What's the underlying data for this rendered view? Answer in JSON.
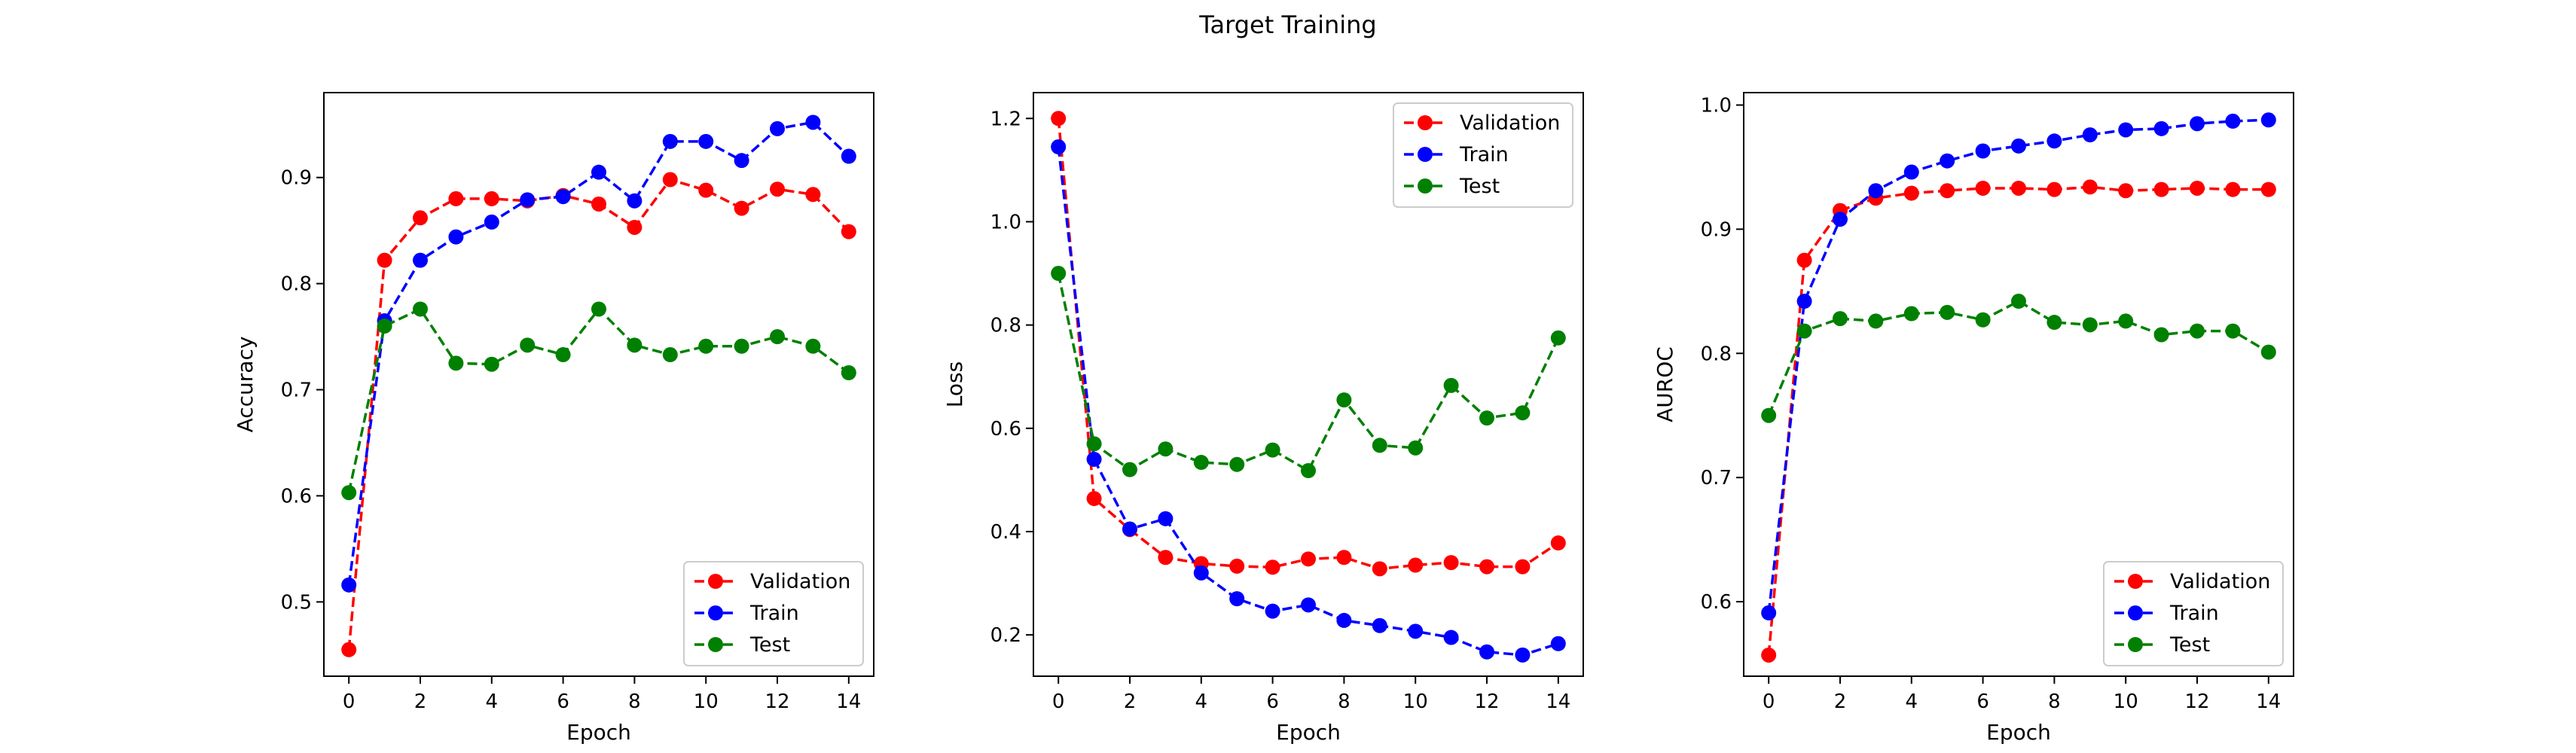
{
  "figure": {
    "suptitle": "Target Training"
  },
  "colors": {
    "Validation": "#ff0000",
    "Train": "#0000ff",
    "Test": "#008000"
  },
  "chart_data": [
    {
      "type": "line",
      "xlabel": "Epoch",
      "ylabel": "Accuracy",
      "x": [
        0,
        1,
        2,
        3,
        4,
        5,
        6,
        7,
        8,
        9,
        10,
        11,
        12,
        13,
        14
      ],
      "xlim": [
        -0.7,
        14.7
      ],
      "ylim": [
        0.43,
        0.98
      ],
      "xticks": [
        0,
        2,
        4,
        6,
        8,
        10,
        12,
        14
      ],
      "yticks": [
        0.5,
        0.6,
        0.7,
        0.8,
        0.9
      ],
      "ytick_labels": [
        "0.5",
        "0.6",
        "0.7",
        "0.8",
        "0.9"
      ],
      "legend_position": "bottom-right",
      "grid": false,
      "series": [
        {
          "name": "Validation",
          "values": [
            0.455,
            0.822,
            0.862,
            0.88,
            0.88,
            0.878,
            0.883,
            0.875,
            0.853,
            0.898,
            0.888,
            0.871,
            0.889,
            0.884,
            0.849
          ]
        },
        {
          "name": "Train",
          "values": [
            0.516,
            0.765,
            0.822,
            0.844,
            0.858,
            0.879,
            0.882,
            0.905,
            0.878,
            0.934,
            0.934,
            0.916,
            0.946,
            0.952,
            0.92
          ]
        },
        {
          "name": "Test",
          "values": [
            0.603,
            0.76,
            0.776,
            0.725,
            0.724,
            0.742,
            0.733,
            0.776,
            0.742,
            0.733,
            0.741,
            0.741,
            0.75,
            0.741,
            0.716
          ]
        }
      ]
    },
    {
      "type": "line",
      "xlabel": "Epoch",
      "ylabel": "Loss",
      "x": [
        0,
        1,
        2,
        3,
        4,
        5,
        6,
        7,
        8,
        9,
        10,
        11,
        12,
        13,
        14
      ],
      "xlim": [
        -0.7,
        14.7
      ],
      "ylim": [
        0.12,
        1.25
      ],
      "xticks": [
        0,
        2,
        4,
        6,
        8,
        10,
        12,
        14
      ],
      "yticks": [
        0.2,
        0.4,
        0.6,
        0.8,
        1.0,
        1.2
      ],
      "ytick_labels": [
        "0.2",
        "0.4",
        "0.6",
        "0.8",
        "1.0",
        "1.2"
      ],
      "legend_position": "top-right",
      "grid": false,
      "series": [
        {
          "name": "Validation",
          "values": [
            1.2,
            0.464,
            0.404,
            0.35,
            0.338,
            0.333,
            0.331,
            0.347,
            0.35,
            0.328,
            0.335,
            0.34,
            0.332,
            0.332,
            0.378
          ]
        },
        {
          "name": "Train",
          "values": [
            1.145,
            0.54,
            0.405,
            0.425,
            0.32,
            0.27,
            0.246,
            0.258,
            0.228,
            0.218,
            0.207,
            0.195,
            0.167,
            0.161,
            0.183
          ]
        },
        {
          "name": "Test",
          "values": [
            0.9,
            0.57,
            0.52,
            0.56,
            0.534,
            0.53,
            0.558,
            0.518,
            0.655,
            0.567,
            0.562,
            0.683,
            0.62,
            0.63,
            0.775
          ]
        }
      ]
    },
    {
      "type": "line",
      "xlabel": "Epoch",
      "ylabel": "AUROC",
      "x": [
        0,
        1,
        2,
        3,
        4,
        5,
        6,
        7,
        8,
        9,
        10,
        11,
        12,
        13,
        14
      ],
      "xlim": [
        -0.7,
        14.7
      ],
      "ylim": [
        0.54,
        1.01
      ],
      "xticks": [
        0,
        2,
        4,
        6,
        8,
        10,
        12,
        14
      ],
      "yticks": [
        0.6,
        0.7,
        0.8,
        0.9,
        1.0
      ],
      "ytick_labels": [
        "0.6",
        "0.7",
        "0.8",
        "0.9",
        "1.0"
      ],
      "legend_position": "bottom-right",
      "grid": false,
      "series": [
        {
          "name": "Validation",
          "values": [
            0.557,
            0.875,
            0.915,
            0.925,
            0.929,
            0.931,
            0.933,
            0.933,
            0.932,
            0.934,
            0.931,
            0.932,
            0.933,
            0.932,
            0.932
          ]
        },
        {
          "name": "Train",
          "values": [
            0.591,
            0.842,
            0.908,
            0.931,
            0.946,
            0.955,
            0.963,
            0.967,
            0.971,
            0.976,
            0.98,
            0.981,
            0.985,
            0.987,
            0.988
          ]
        },
        {
          "name": "Test",
          "values": [
            0.75,
            0.818,
            0.828,
            0.826,
            0.832,
            0.833,
            0.827,
            0.842,
            0.825,
            0.823,
            0.826,
            0.815,
            0.818,
            0.818,
            0.801
          ]
        }
      ]
    }
  ]
}
